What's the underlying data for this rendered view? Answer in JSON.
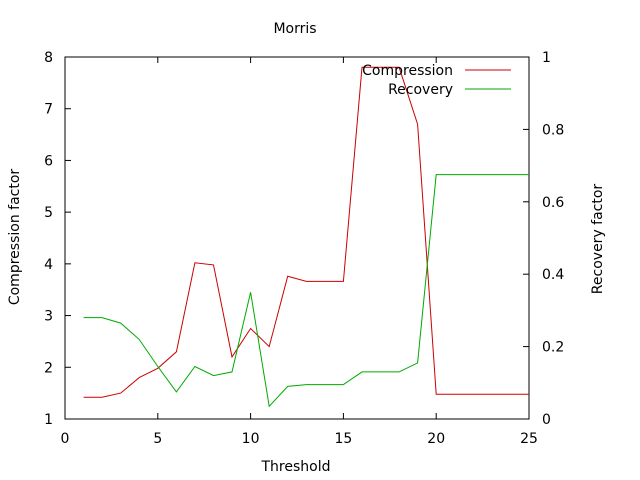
{
  "chart_data": {
    "type": "line",
    "title": "Morris",
    "xlabel": "Threshold",
    "ylabel": "Compression factor",
    "y2label": "Recovery factor",
    "xlim": [
      0,
      25
    ],
    "ylim": [
      1,
      8
    ],
    "y2lim": [
      0,
      1
    ],
    "xticks": [
      0,
      5,
      10,
      15,
      20,
      25
    ],
    "yticks": [
      1,
      2,
      3,
      4,
      5,
      6,
      7,
      8
    ],
    "y2ticks": [
      0,
      0.2,
      0.4,
      0.6,
      0.8,
      1
    ],
    "grid": false,
    "legend_position": "top-right",
    "series": [
      {
        "name": "Compression",
        "axis": "left",
        "color": "#cc0000",
        "x": [
          1,
          2,
          3,
          4,
          5,
          6,
          7,
          8,
          9,
          10,
          11,
          12,
          13,
          14,
          15,
          16,
          17,
          18,
          19,
          20,
          21,
          22,
          23,
          24,
          25
        ],
        "values": [
          1.42,
          1.42,
          1.5,
          1.8,
          1.98,
          2.3,
          4.02,
          3.98,
          2.2,
          2.75,
          2.4,
          3.76,
          3.66,
          3.66,
          3.66,
          7.8,
          7.8,
          7.8,
          6.7,
          1.48,
          1.48,
          1.48,
          1.48,
          1.48,
          1.48
        ]
      },
      {
        "name": "Recovery",
        "axis": "right",
        "color": "#00aa00",
        "x": [
          1,
          2,
          3,
          4,
          5,
          6,
          7,
          8,
          9,
          10,
          11,
          12,
          13,
          14,
          15,
          16,
          17,
          18,
          19,
          20,
          21,
          22,
          23,
          24,
          25
        ],
        "values": [
          0.28,
          0.28,
          0.265,
          0.22,
          0.145,
          0.075,
          0.145,
          0.12,
          0.13,
          0.35,
          0.035,
          0.09,
          0.095,
          0.095,
          0.095,
          0.13,
          0.13,
          0.13,
          0.155,
          0.675,
          0.675,
          0.675,
          0.675,
          0.675,
          0.675
        ]
      }
    ]
  }
}
